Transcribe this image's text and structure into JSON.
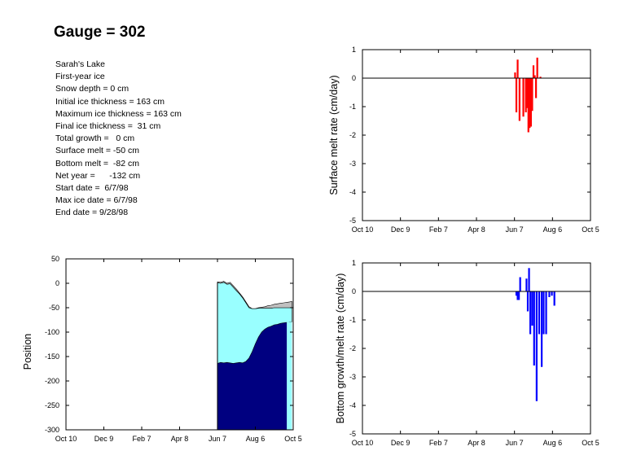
{
  "title": "Gauge = 302",
  "info_lines": [
    "Sarah's Lake",
    "First-year ice",
    "Snow depth = 0 cm",
    "Initial ice thickness = 163 cm",
    "Maximum ice thickness = 163 cm",
    "Final ice thickness =  31 cm",
    "Total growth =   0 cm",
    "Surface melt = -50 cm",
    "Bottom melt =  -82 cm",
    "Net year =      -132 cm",
    "Start date =  6/7/98",
    "Max ice date = 6/7/98",
    "End date = 9/28/98"
  ],
  "chart_data": [
    {
      "id": "surface",
      "type": "bar",
      "ylabel": "Surface melt rate (cm/day)",
      "xlabel": "",
      "x_ticks": [
        "Oct 10",
        "Dec 9",
        "Feb 7",
        "Apr 8",
        "Jun 7",
        "Aug 6",
        "Oct 5"
      ],
      "x_tick_days": [
        0,
        60,
        120,
        180,
        240,
        300,
        360
      ],
      "ylim": [
        -5,
        1
      ],
      "y_ticks": [
        1,
        0,
        -1,
        -2,
        -3,
        -4,
        -5
      ],
      "color": "#ff0000",
      "zero_line": true,
      "bars": [
        {
          "x": 241,
          "y": 0.2
        },
        {
          "x": 243,
          "y": -1.2
        },
        {
          "x": 245,
          "y": 0.65
        },
        {
          "x": 248,
          "y": -1.5
        },
        {
          "x": 254,
          "y": -1.35
        },
        {
          "x": 258,
          "y": -1.2
        },
        {
          "x": 260,
          "y": -1.05
        },
        {
          "x": 262,
          "y": -1.9
        },
        {
          "x": 264,
          "y": -1.75
        },
        {
          "x": 266,
          "y": -1.7
        },
        {
          "x": 268,
          "y": -1.15
        },
        {
          "x": 270,
          "y": 0.45
        },
        {
          "x": 272,
          "y": 0.1
        },
        {
          "x": 274,
          "y": -0.7
        },
        {
          "x": 276,
          "y": 0.72
        },
        {
          "x": 281,
          "y": 0.05
        }
      ]
    },
    {
      "id": "position",
      "type": "area",
      "ylabel": "Position",
      "xlabel": "",
      "x_ticks": [
        "Oct 10",
        "Dec 9",
        "Feb 7",
        "Apr 8",
        "Jun 7",
        "Aug 6",
        "Oct 5"
      ],
      "x_tick_days": [
        0,
        60,
        120,
        180,
        240,
        300,
        360
      ],
      "ylim": [
        -300,
        50
      ],
      "y_ticks": [
        50,
        0,
        -50,
        -100,
        -150,
        -200,
        -250,
        -300
      ],
      "colors": {
        "snow": "#c0c0c0",
        "ice": "#99ffff",
        "water": "#000080"
      },
      "x": [
        240,
        245,
        250,
        255,
        260,
        265,
        270,
        275,
        280,
        285,
        290,
        295,
        300,
        305,
        310,
        315,
        320,
        325,
        330,
        335,
        340,
        345,
        350,
        355,
        358
      ],
      "series": [
        {
          "role": "snow_top",
          "values": [
            3,
            2,
            4,
            0,
            2,
            -5,
            -12,
            -20,
            -28,
            -38,
            -48,
            -52,
            -52,
            -50,
            -49,
            -48,
            -46,
            -45,
            -43,
            -42,
            -41,
            -40,
            -39,
            -38,
            -37
          ]
        },
        {
          "role": "ice_top",
          "values": [
            1,
            0,
            2,
            -2,
            -1,
            -8,
            -15,
            -22,
            -30,
            -40,
            -50,
            -52,
            -52,
            -51,
            -51,
            -51,
            -51,
            -51,
            -50,
            -50,
            -50,
            -50,
            -50,
            -50,
            -50
          ]
        },
        {
          "role": "ice_bottom",
          "values": [
            -164,
            -162,
            -163,
            -162,
            -163,
            -164,
            -163,
            -162,
            -163,
            -160,
            -153,
            -140,
            -124,
            -110,
            -100,
            -94,
            -90,
            -88,
            -85,
            -84,
            -82,
            -81,
            -80,
            -79,
            -79
          ]
        }
      ],
      "water_end_day": 350
    },
    {
      "id": "bottom",
      "type": "bar",
      "ylabel": "Bottom growth/melt rate (cm/day)",
      "xlabel": "",
      "x_ticks": [
        "Oct 10",
        "Dec 9",
        "Feb 7",
        "Apr 8",
        "Jun 7",
        "Aug 6",
        "Oct 5"
      ],
      "x_tick_days": [
        0,
        60,
        120,
        180,
        240,
        300,
        360
      ],
      "ylim": [
        -5,
        1
      ],
      "y_ticks": [
        1,
        0,
        -1,
        -2,
        -3,
        -4,
        -5
      ],
      "color": "#0000ff",
      "zero_line": true,
      "bars": [
        {
          "x": 243,
          "y": -0.15
        },
        {
          "x": 245,
          "y": -0.3
        },
        {
          "x": 247,
          "y": -0.3
        },
        {
          "x": 249,
          "y": 0.5
        },
        {
          "x": 259,
          "y": 0.45
        },
        {
          "x": 261,
          "y": -0.7
        },
        {
          "x": 263,
          "y": 0.82
        },
        {
          "x": 265,
          "y": -1.5
        },
        {
          "x": 268,
          "y": -1.2
        },
        {
          "x": 271,
          "y": -2.6
        },
        {
          "x": 275,
          "y": -3.85
        },
        {
          "x": 279,
          "y": -1.5
        },
        {
          "x": 283,
          "y": -2.65
        },
        {
          "x": 286,
          "y": -1.5
        },
        {
          "x": 290,
          "y": -1.5
        },
        {
          "x": 295,
          "y": -0.2
        },
        {
          "x": 299,
          "y": -0.15
        },
        {
          "x": 303,
          "y": -0.5
        }
      ]
    }
  ]
}
